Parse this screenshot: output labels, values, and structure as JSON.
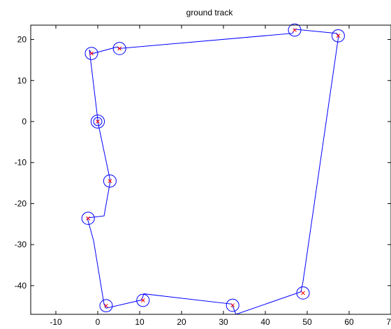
{
  "chart_data": {
    "type": "line",
    "title": "ground track",
    "xlabel": "",
    "ylabel": "",
    "xlim": [
      -16,
      70
    ],
    "ylim": [
      -47,
      23.5
    ],
    "xticks": [
      -10,
      0,
      10,
      20,
      30,
      40,
      50,
      60,
      70
    ],
    "yticks": [
      -40,
      -30,
      -20,
      -10,
      0,
      10,
      20
    ],
    "xtick_labels": [
      "-10",
      "0",
      "10",
      "20",
      "30",
      "40",
      "50",
      "60",
      "70"
    ],
    "ytick_labels": [
      "-40",
      "-30",
      "-20",
      "-10",
      "0",
      "10",
      "20"
    ],
    "grid": false,
    "legend": "none",
    "series": [
      {
        "color": "#0000ff",
        "style": "line",
        "path": [
          [
            0,
            0
          ],
          [
            3,
            -14.5
          ],
          [
            1.5,
            -23
          ],
          [
            -2.5,
            -23.5
          ],
          [
            -1,
            -29
          ],
          [
            1.5,
            -44.5
          ],
          [
            2,
            -45.5
          ],
          [
            10.5,
            -43.5
          ],
          [
            11,
            -42
          ],
          [
            32,
            -44.5
          ],
          [
            33,
            -47
          ],
          [
            48.5,
            -41.5
          ],
          [
            49,
            -39
          ],
          [
            57.5,
            21
          ],
          [
            57,
            21.5
          ],
          [
            47,
            22.5
          ],
          [
            46.5,
            21.5
          ],
          [
            5,
            17.8
          ],
          [
            4.7,
            18.2
          ],
          [
            -1.5,
            16.5
          ],
          [
            -2,
            17.5
          ],
          [
            0,
            0.5
          ],
          [
            0,
            0
          ]
        ],
        "loops": [
          {
            "cx": 0,
            "cy": 0,
            "r": 1.6
          },
          {
            "cx": 0,
            "cy": 0,
            "r": 1.0
          },
          {
            "cx": 2.9,
            "cy": -14.5,
            "r": 1.5
          },
          {
            "cx": -2.3,
            "cy": -23.6,
            "r": 1.5
          },
          {
            "cx": 2.0,
            "cy": -44.9,
            "r": 1.5
          },
          {
            "cx": 10.8,
            "cy": -43.6,
            "r": 1.5
          },
          {
            "cx": 32.2,
            "cy": -44.8,
            "r": 1.5
          },
          {
            "cx": 49.0,
            "cy": -41.8,
            "r": 1.5
          },
          {
            "cx": 57.4,
            "cy": 20.9,
            "r": 1.5
          },
          {
            "cx": 47.0,
            "cy": 22.3,
            "r": 1.5
          },
          {
            "cx": 5.2,
            "cy": 17.8,
            "r": 1.5
          },
          {
            "cx": -1.5,
            "cy": 16.6,
            "r": 1.5
          }
        ]
      },
      {
        "color": "#ff0000",
        "style": "markers-x",
        "points": [
          [
            0,
            0
          ],
          [
            2.9,
            -14.5
          ],
          [
            -2.3,
            -23.6
          ],
          [
            2.0,
            -44.9
          ],
          [
            10.8,
            -43.6
          ],
          [
            32.2,
            -44.8
          ],
          [
            49.0,
            -41.8
          ],
          [
            57.4,
            20.9
          ],
          [
            47.0,
            22.3
          ],
          [
            5.2,
            17.8
          ],
          [
            -1.5,
            16.6
          ]
        ]
      }
    ]
  },
  "colors": {
    "axes": "#000000",
    "background": "#ffffff",
    "track": "#0000ff",
    "markers": "#ff0000"
  }
}
